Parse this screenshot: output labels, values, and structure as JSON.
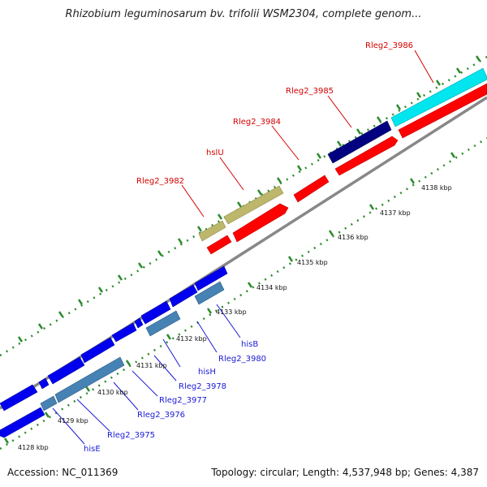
{
  "title": "Rhizobium leguminosarum bv. trifolii WSM2304, complete genom...",
  "footer": {
    "accession": "Accession: NC_011369",
    "topology": "Topology: circular; Length: 4,537,948 bp; Genes: 4,387"
  },
  "gene_labels_top": [
    {
      "text": "Rleg2_3986"
    },
    {
      "text": "Rleg2_3985"
    },
    {
      "text": "Rleg2_3984"
    },
    {
      "text": "hslU"
    },
    {
      "text": "Rleg2_3982"
    }
  ],
  "gene_labels_bottom": [
    {
      "text": "hisB"
    },
    {
      "text": "Rleg2_3980"
    },
    {
      "text": "hisH"
    },
    {
      "text": "Rleg2_3978"
    },
    {
      "text": "Rleg2_3977"
    },
    {
      "text": "Rleg2_3976"
    },
    {
      "text": "Rleg2_3975"
    },
    {
      "text": "hisE"
    }
  ],
  "kbp_ticks": [
    {
      "text": "4128 kbp"
    },
    {
      "text": "4129 kbp"
    },
    {
      "text": "4130 kbp"
    },
    {
      "text": "4131 kbp"
    },
    {
      "text": "4132 kbp"
    },
    {
      "text": "4133 kbp"
    },
    {
      "text": "4134 kbp"
    },
    {
      "text": "4135 kbp"
    },
    {
      "text": "4136 kbp"
    },
    {
      "text": "4137 kbp"
    },
    {
      "text": "4138 kbp"
    }
  ],
  "colors": {
    "forward_genes": "#ff0000",
    "reverse_genes": "#0000ee",
    "highlight_cyan": "#00e5ee",
    "highlight_navy": "#000080",
    "highlight_khaki": "#bdb76b",
    "highlight_steel": "#4682b4",
    "backbone": "#888888",
    "dotted_guides": "#2e8b2e"
  }
}
